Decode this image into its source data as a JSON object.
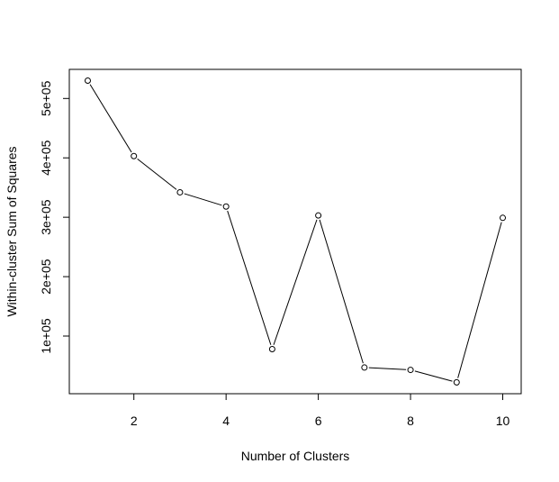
{
  "chart_data": {
    "type": "line",
    "xlabel": "Number of Clusters",
    "ylabel": "Within-cluster Sum of Squares",
    "x": [
      1,
      2,
      3,
      4,
      5,
      6,
      7,
      8,
      9,
      10
    ],
    "y": [
      530000,
      403000,
      342000,
      318000,
      78000,
      303000,
      47000,
      43000,
      22000,
      299000
    ],
    "xlim": [
      0.6,
      10.4
    ],
    "ylim": [
      2900,
      549000
    ],
    "xticks": [
      2,
      4,
      6,
      8,
      10
    ],
    "xtick_labels": [
      "2",
      "4",
      "6",
      "8",
      "10"
    ],
    "yticks": [
      100000,
      200000,
      300000,
      400000,
      500000
    ],
    "ytick_labels": [
      "1e+05",
      "2e+05",
      "3e+05",
      "4e+05",
      "5e+05"
    ],
    "marker": "open-circle",
    "line_color": "#000000",
    "grid": false
  }
}
